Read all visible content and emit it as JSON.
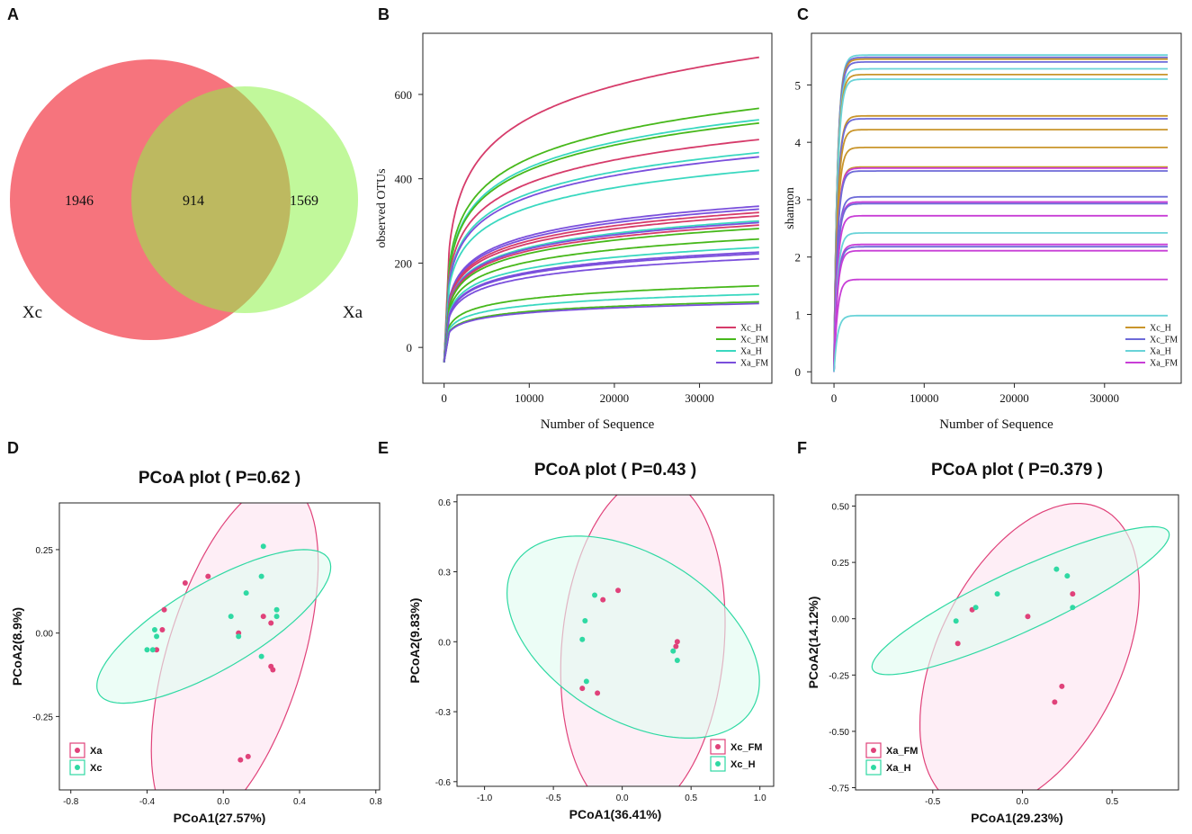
{
  "panel_labels": [
    "A",
    "B",
    "C",
    "D",
    "E",
    "F"
  ],
  "chart_data": [
    {
      "id": "A",
      "type": "venn",
      "sets": [
        {
          "name": "Xc",
          "only": 1946,
          "color": "#f45c66"
        },
        {
          "name": "Xa",
          "only": 1569,
          "color": "#8ef248"
        }
      ],
      "shared": 914,
      "labels": {
        "only_a": "1946",
        "shared": "914",
        "only_b": "1569",
        "set_a": "Xc",
        "set_b": "Xa"
      }
    },
    {
      "id": "B",
      "type": "line",
      "title": "",
      "xlabel": "Number of Sequence",
      "ylabel": "observed OTUs",
      "xlim": [
        -2500,
        38500
      ],
      "ylim": [
        -85,
        745
      ],
      "xticks": [
        0,
        10000,
        20000,
        30000
      ],
      "xtick_labels": [
        "0",
        "10000",
        "20000",
        "30000"
      ],
      "yticks": [
        0,
        200,
        400,
        600
      ],
      "ytick_labels": [
        "0",
        "200",
        "400",
        "600"
      ],
      "x_start": 0,
      "x_end": 37000,
      "legend": {
        "position": "bottom-right",
        "entries": [
          {
            "name": "Xc_H",
            "color": "#d63b6a"
          },
          {
            "name": "Xc_FM",
            "color": "#47b81b"
          },
          {
            "name": "Xa_H",
            "color": "#3ad8c0"
          },
          {
            "name": "Xa_FM",
            "color": "#7a4fdc"
          }
        ]
      },
      "series": [
        {
          "group": "Xc_H",
          "final": 688
        },
        {
          "group": "Xc_FM",
          "final": 567
        },
        {
          "group": "Xa_H",
          "final": 540
        },
        {
          "group": "Xc_FM",
          "final": 532
        },
        {
          "group": "Xc_H",
          "final": 493
        },
        {
          "group": "Xa_H",
          "final": 462
        },
        {
          "group": "Xa_FM",
          "final": 452
        },
        {
          "group": "Xa_H",
          "final": 420
        },
        {
          "group": "Xa_FM",
          "final": 335
        },
        {
          "group": "Xa_FM",
          "final": 328
        },
        {
          "group": "Xc_H",
          "final": 320
        },
        {
          "group": "Xc_H",
          "final": 312
        },
        {
          "group": "Xa_H",
          "final": 300
        },
        {
          "group": "Xa_FM",
          "final": 296
        },
        {
          "group": "Xc_H",
          "final": 290
        },
        {
          "group": "Xc_FM",
          "final": 282
        },
        {
          "group": "Xc_FM",
          "final": 257
        },
        {
          "group": "Xa_H",
          "final": 237
        },
        {
          "group": "Xa_FM",
          "final": 226
        },
        {
          "group": "Xa_FM",
          "final": 222
        },
        {
          "group": "Xa_FM",
          "final": 210
        },
        {
          "group": "Xc_FM",
          "final": 146
        },
        {
          "group": "Xa_H",
          "final": 126
        },
        {
          "group": "Xc_FM",
          "final": 108
        },
        {
          "group": "Xa_FM",
          "final": 104
        }
      ]
    },
    {
      "id": "C",
      "type": "line",
      "title": "",
      "xlabel": "Number of Sequence",
      "ylabel": "shannon",
      "xlim": [
        -2500,
        38500
      ],
      "ylim": [
        -0.2,
        5.9
      ],
      "xticks": [
        0,
        10000,
        20000,
        30000
      ],
      "xtick_labels": [
        "0",
        "10000",
        "20000",
        "30000"
      ],
      "yticks": [
        0,
        1,
        2,
        3,
        4,
        5
      ],
      "ytick_labels": [
        "0",
        "1",
        "2",
        "3",
        "4",
        "5"
      ],
      "x_start": 0,
      "x_end": 37000,
      "legend": {
        "position": "bottom-right",
        "entries": [
          {
            "name": "Xc_H",
            "color": "#c9952b"
          },
          {
            "name": "Xc_FM",
            "color": "#6d6ad8"
          },
          {
            "name": "Xa_H",
            "color": "#69d3d8"
          },
          {
            "name": "Xa_FM",
            "color": "#c83ed6"
          }
        ]
      },
      "series": [
        {
          "group": "Xa_H",
          "final": 5.52
        },
        {
          "group": "Xc_FM",
          "final": 5.48
        },
        {
          "group": "Xc_H",
          "final": 5.45
        },
        {
          "group": "Xc_FM",
          "final": 5.4
        },
        {
          "group": "Xa_H",
          "final": 5.28
        },
        {
          "group": "Xc_H",
          "final": 5.18
        },
        {
          "group": "Xa_H",
          "final": 5.1
        },
        {
          "group": "Xc_H",
          "final": 4.46
        },
        {
          "group": "Xc_FM",
          "final": 4.41
        },
        {
          "group": "Xc_H",
          "final": 4.22
        },
        {
          "group": "Xc_H",
          "final": 3.91
        },
        {
          "group": "Xc_H",
          "final": 3.57
        },
        {
          "group": "Xa_FM",
          "final": 3.55
        },
        {
          "group": "Xc_FM",
          "final": 3.5
        },
        {
          "group": "Xc_FM",
          "final": 3.05
        },
        {
          "group": "Xa_FM",
          "final": 2.96
        },
        {
          "group": "Xc_FM",
          "final": 2.93
        },
        {
          "group": "Xa_FM",
          "final": 2.72
        },
        {
          "group": "Xa_H",
          "final": 2.42
        },
        {
          "group": "Xa_FM",
          "final": 2.22
        },
        {
          "group": "Xc_FM",
          "final": 2.18
        },
        {
          "group": "Xa_FM",
          "final": 2.11
        },
        {
          "group": "Xa_FM",
          "final": 1.61
        },
        {
          "group": "Xa_H",
          "final": 0.98
        }
      ]
    },
    {
      "id": "D",
      "type": "scatter",
      "title": "PCoA plot ( P=0.62 )",
      "xlabel": "PCoA1(27.57%)",
      "ylabel": "PCoA2(8.9%)",
      "xlim": [
        -0.86,
        0.82
      ],
      "ylim": [
        -0.47,
        0.39
      ],
      "xticks": [
        -0.8,
        -0.4,
        0,
        0.4,
        0.8
      ],
      "xtick_labels": [
        "-0.8",
        "-0.4",
        "0.0",
        "0.4",
        "0.8"
      ],
      "yticks": [
        -0.25,
        0,
        0.25
      ],
      "ytick_labels": [
        "-0.25",
        "0.00",
        "0.25"
      ],
      "legend": {
        "position": "bottom-left",
        "entries": [
          {
            "name": "Xa",
            "color": "#e0427a",
            "fill": "#fde3f1"
          },
          {
            "name": "Xc",
            "color": "#2fd9a3",
            "fill": "#e1fbf1"
          }
        ]
      },
      "ellipses": [
        {
          "group": "Xa",
          "cx": 0.06,
          "cy": -0.07,
          "rx": 0.6,
          "ry": 0.32,
          "angle_deg": 54
        },
        {
          "group": "Xc",
          "cx": -0.05,
          "cy": 0.02,
          "rx": 0.64,
          "ry": 0.14,
          "angle_deg": 17
        }
      ],
      "points": [
        {
          "group": "Xa",
          "x": -0.2,
          "y": 0.15
        },
        {
          "group": "Xa",
          "x": -0.08,
          "y": 0.17
        },
        {
          "group": "Xa",
          "x": -0.31,
          "y": 0.07
        },
        {
          "group": "Xa",
          "x": -0.32,
          "y": 0.01
        },
        {
          "group": "Xa",
          "x": -0.35,
          "y": -0.05
        },
        {
          "group": "Xa",
          "x": 0.08,
          "y": 0.0
        },
        {
          "group": "Xa",
          "x": 0.21,
          "y": 0.05
        },
        {
          "group": "Xa",
          "x": 0.25,
          "y": 0.03
        },
        {
          "group": "Xa",
          "x": 0.25,
          "y": -0.1
        },
        {
          "group": "Xa",
          "x": 0.26,
          "y": -0.11
        },
        {
          "group": "Xa",
          "x": 0.09,
          "y": -0.38
        },
        {
          "group": "Xa",
          "x": 0.13,
          "y": -0.37
        },
        {
          "group": "Xc",
          "x": 0.21,
          "y": 0.26
        },
        {
          "group": "Xc",
          "x": 0.2,
          "y": 0.17
        },
        {
          "group": "Xc",
          "x": 0.12,
          "y": 0.12
        },
        {
          "group": "Xc",
          "x": 0.04,
          "y": 0.05
        },
        {
          "group": "Xc",
          "x": 0.28,
          "y": 0.07
        },
        {
          "group": "Xc",
          "x": 0.28,
          "y": 0.05
        },
        {
          "group": "Xc",
          "x": 0.08,
          "y": -0.01
        },
        {
          "group": "Xc",
          "x": 0.2,
          "y": -0.07
        },
        {
          "group": "Xc",
          "x": -0.36,
          "y": 0.01
        },
        {
          "group": "Xc",
          "x": -0.35,
          "y": -0.01
        },
        {
          "group": "Xc",
          "x": -0.4,
          "y": -0.05
        },
        {
          "group": "Xc",
          "x": -0.37,
          "y": -0.05
        }
      ]
    },
    {
      "id": "E",
      "type": "scatter",
      "title": "PCoA plot ( P=0.43 )",
      "xlabel": "PCoA1(36.41%)",
      "ylabel": "PCoA2(9.83%)",
      "xlim": [
        -1.2,
        1.1
      ],
      "ylim": [
        -0.62,
        0.63
      ],
      "xticks": [
        -1.0,
        -0.5,
        0,
        0.5,
        1.0
      ],
      "xtick_labels": [
        "-1.0",
        "-0.5",
        "0.0",
        "0.5",
        "1.0"
      ],
      "yticks": [
        -0.6,
        -0.3,
        0,
        0.3,
        0.6
      ],
      "ytick_labels": [
        "-0.6",
        "-0.3",
        "0.0",
        "0.3",
        "0.6"
      ],
      "legend": {
        "position": "bottom-right",
        "entries": [
          {
            "name": "Xc_FM",
            "color": "#e0427a",
            "fill": "#fde3f1"
          },
          {
            "name": "Xc_H",
            "color": "#2fd9a3",
            "fill": "#e1fbf1"
          }
        ]
      },
      "ellipses": [
        {
          "group": "Xc_FM",
          "cx": 0.15,
          "cy": -0.02,
          "rx": 0.74,
          "ry": 0.58,
          "angle_deg": 72
        },
        {
          "group": "Xc_H",
          "cx": 0.08,
          "cy": 0.02,
          "rx": 0.94,
          "ry": 0.38,
          "angle_deg": -14
        }
      ],
      "points": [
        {
          "group": "Xc_FM",
          "x": -0.14,
          "y": 0.18
        },
        {
          "group": "Xc_FM",
          "x": -0.03,
          "y": 0.22
        },
        {
          "group": "Xc_FM",
          "x": 0.39,
          "y": -0.02
        },
        {
          "group": "Xc_FM",
          "x": 0.4,
          "y": 0.0
        },
        {
          "group": "Xc_FM",
          "x": -0.29,
          "y": -0.2
        },
        {
          "group": "Xc_FM",
          "x": -0.18,
          "y": -0.22
        },
        {
          "group": "Xc_H",
          "x": -0.2,
          "y": 0.2
        },
        {
          "group": "Xc_H",
          "x": -0.27,
          "y": 0.09
        },
        {
          "group": "Xc_H",
          "x": -0.29,
          "y": 0.01
        },
        {
          "group": "Xc_H",
          "x": -0.26,
          "y": -0.17
        },
        {
          "group": "Xc_H",
          "x": 0.37,
          "y": -0.04
        },
        {
          "group": "Xc_H",
          "x": 0.4,
          "y": -0.08
        }
      ]
    },
    {
      "id": "F",
      "type": "scatter",
      "title": "PCoA plot ( P=0.379 )",
      "xlabel": "PCoA1(29.23%)",
      "ylabel": "PCoA2(14.12%)",
      "xlim": [
        -0.93,
        0.87
      ],
      "ylim": [
        -0.76,
        0.55
      ],
      "xticks": [
        -0.5,
        0,
        0.5
      ],
      "xtick_labels": [
        "-0.5",
        "0.0",
        "0.5"
      ],
      "yticks": [
        -0.75,
        -0.5,
        -0.25,
        0,
        0.25,
        0.5
      ],
      "ytick_labels": [
        "-0.75",
        "-0.50",
        "-0.25",
        "0.00",
        "0.25",
        "0.50"
      ],
      "legend": {
        "position": "bottom-left",
        "entries": [
          {
            "name": "Xa_FM",
            "color": "#e0427a",
            "fill": "#fde3f1"
          },
          {
            "name": "Xa_H",
            "color": "#2fd9a3",
            "fill": "#e1fbf1"
          }
        ]
      },
      "ellipses": [
        {
          "group": "Xa_FM",
          "cx": 0.04,
          "cy": -0.17,
          "rx": 0.78,
          "ry": 0.48,
          "angle_deg": 52
        },
        {
          "group": "Xa_H",
          "cx": -0.01,
          "cy": 0.08,
          "rx": 0.88,
          "ry": 0.14,
          "angle_deg": 20
        }
      ],
      "points": [
        {
          "group": "Xa_FM",
          "x": -0.28,
          "y": 0.04
        },
        {
          "group": "Xa_FM",
          "x": -0.36,
          "y": -0.11
        },
        {
          "group": "Xa_FM",
          "x": 0.03,
          "y": 0.01
        },
        {
          "group": "Xa_FM",
          "x": 0.28,
          "y": 0.11
        },
        {
          "group": "Xa_FM",
          "x": 0.22,
          "y": -0.3
        },
        {
          "group": "Xa_FM",
          "x": 0.18,
          "y": -0.37
        },
        {
          "group": "Xa_H",
          "x": -0.26,
          "y": 0.05
        },
        {
          "group": "Xa_H",
          "x": -0.37,
          "y": -0.01
        },
        {
          "group": "Xa_H",
          "x": -0.14,
          "y": 0.11
        },
        {
          "group": "Xa_H",
          "x": 0.19,
          "y": 0.22
        },
        {
          "group": "Xa_H",
          "x": 0.25,
          "y": 0.19
        },
        {
          "group": "Xa_H",
          "x": 0.28,
          "y": 0.05
        }
      ]
    }
  ]
}
